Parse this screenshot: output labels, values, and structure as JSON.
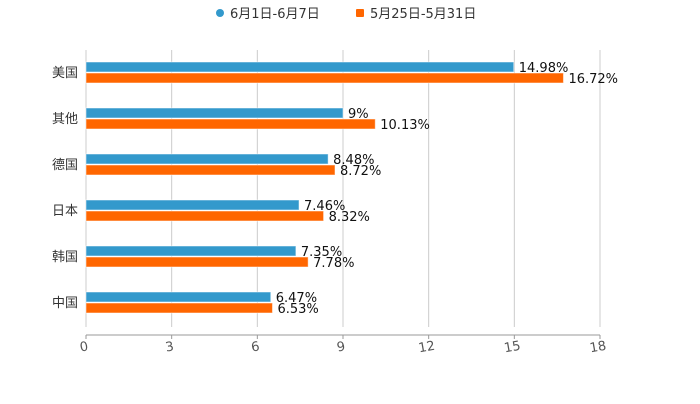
{
  "chart_data": {
    "type": "bar",
    "orientation": "horizontal",
    "categories": [
      "美国",
      "其他",
      "德国",
      "日本",
      "韩国",
      "中国"
    ],
    "series": [
      {
        "name": "6月1日-6月7日",
        "color": "#3399cc",
        "values": [
          14.98,
          9,
          8.48,
          7.46,
          7.35,
          6.47
        ],
        "labels": [
          "14.98%",
          "9%",
          "8.48%",
          "7.46%",
          "7.35%",
          "6.47%"
        ]
      },
      {
        "name": "5月25日-5月31日",
        "color": "#ff6600",
        "values": [
          16.72,
          10.13,
          8.72,
          8.32,
          7.78,
          6.53
        ],
        "labels": [
          "16.72%",
          "10.13%",
          "8.72%",
          "8.32%",
          "7.78%",
          "6.53%"
        ]
      }
    ],
    "xlim": [
      0,
      18
    ],
    "xticks": [
      "0",
      "3",
      "6",
      "9",
      "12",
      "15",
      "18"
    ],
    "grid": true,
    "legend": "top-center"
  }
}
